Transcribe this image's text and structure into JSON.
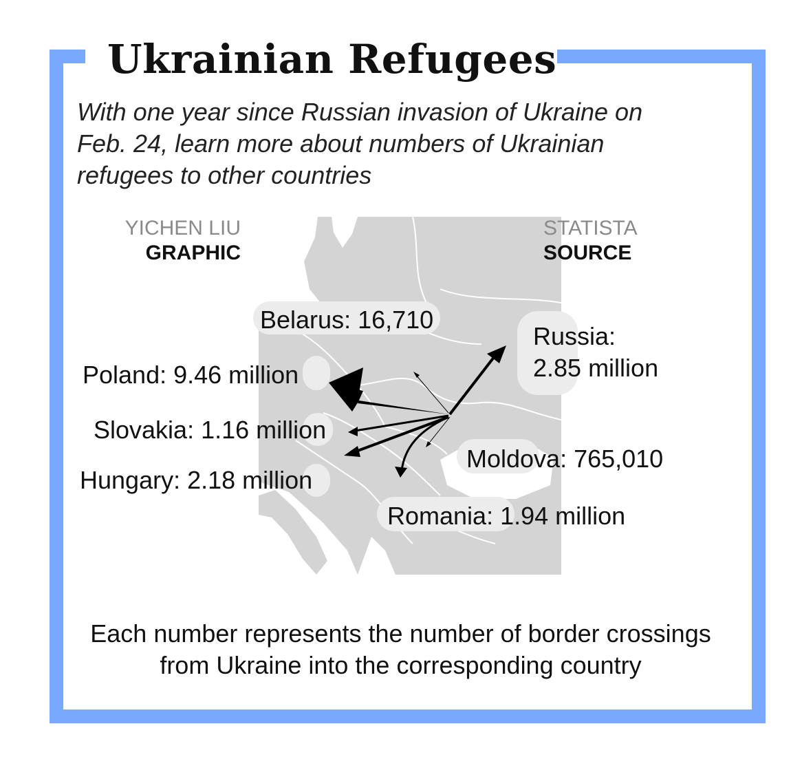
{
  "header": {
    "title": "Ukrainian Refugees",
    "subtitle": "With one year since Russian invasion of Ukraine on Feb. 24, learn more about numbers of Ukrainian refugees to other countries"
  },
  "credits": {
    "graphic_name": "YICHEN LIU",
    "graphic_label": "GRAPHIC",
    "source_name": "STATISTA",
    "source_label": "SOURCE"
  },
  "map": {
    "origin": "Ukraine",
    "destinations": [
      {
        "key": "belarus",
        "text": "Belarus: 16,710",
        "country": "Belarus",
        "value": 16710
      },
      {
        "key": "russia",
        "text_line1": "Russia:",
        "text_line2": "2.85 million",
        "country": "Russia",
        "value": 2850000
      },
      {
        "key": "poland",
        "text": "Poland: 9.46 million",
        "country": "Poland",
        "value": 9460000
      },
      {
        "key": "slovakia",
        "text": "Slovakia: 1.16 million",
        "country": "Slovakia",
        "value": 1160000
      },
      {
        "key": "moldova",
        "text": "Moldova: 765,010",
        "country": "Moldova",
        "value": 765010
      },
      {
        "key": "hungary",
        "text": "Hungary: 2.18 million",
        "country": "Hungary",
        "value": 2180000
      },
      {
        "key": "romania",
        "text": "Romania: 1.94 million",
        "country": "Romania",
        "value": 1940000
      }
    ],
    "colors": {
      "land": "#d4d4d4",
      "border": "#ffffff",
      "arrow": "#000000",
      "label_bg": "#ececec",
      "frame": "#78a9ff"
    }
  },
  "footnote": "Each number represents the number of border crossings from Ukraine into the corresponding country"
}
